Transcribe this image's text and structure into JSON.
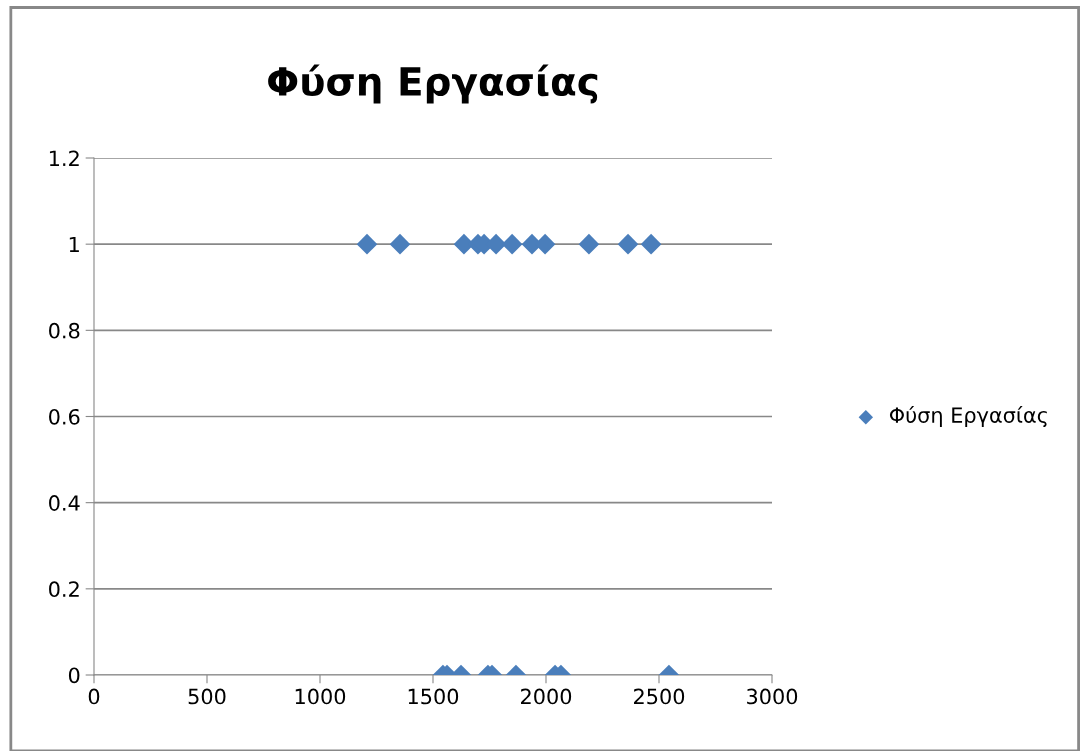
{
  "chart_data": {
    "type": "scatter",
    "title": "Φύση Εργασίας",
    "series": [
      {
        "name": "Φύση Εργασίας",
        "color": "#4a7ebb",
        "x": [
          1208,
          1354,
          1637,
          1699,
          1726,
          1779,
          1850,
          1938,
          1996,
          2190,
          2363,
          2465,
          1544,
          1562,
          1624,
          1743,
          1761,
          1867,
          2040,
          2066,
          2544
        ],
        "values": [
          1,
          1,
          1,
          1,
          1,
          1,
          1,
          1,
          1,
          1,
          1,
          1,
          0,
          0,
          0,
          0,
          0,
          0,
          0,
          0,
          0
        ]
      }
    ],
    "xlim": [
      0,
      3000
    ],
    "xticks": [
      0,
      500,
      1000,
      1500,
      2000,
      2500,
      3000
    ],
    "ylim": [
      0,
      1.2
    ],
    "yticks": [
      0,
      0.2,
      0.4,
      0.6,
      0.8,
      1,
      1.2
    ],
    "grid": "y",
    "legend": "right",
    "marker": "diamond"
  }
}
